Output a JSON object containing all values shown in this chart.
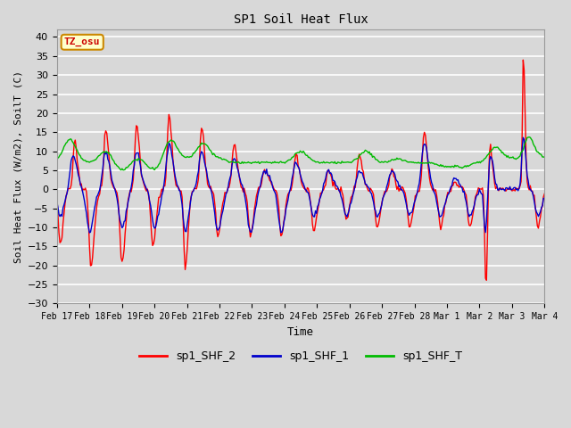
{
  "title": "SP1 Soil Heat Flux",
  "xlabel": "Time",
  "ylabel": "Soil Heat Flux (W/m2), SoilT (C)",
  "ylim": [
    -30,
    42
  ],
  "yticks": [
    -30,
    -25,
    -20,
    -15,
    -10,
    -5,
    0,
    5,
    10,
    15,
    20,
    25,
    30,
    35,
    40
  ],
  "bg_color": "#d8d8d8",
  "plot_bg_color": "#d8d8d8",
  "grid_color": "#ffffff",
  "line_colors": {
    "sp1_SHF_2": "#ff0000",
    "sp1_SHF_1": "#0000cc",
    "sp1_SHF_T": "#00bb00"
  },
  "annotation_text": "TZ_osu",
  "annotation_bg": "#ffffcc",
  "annotation_border": "#cc8800",
  "legend_labels": [
    "sp1_SHF_2",
    "sp1_SHF_1",
    "sp1_SHF_T"
  ],
  "xtick_labels": [
    "Feb 17",
    "Feb 18",
    "Feb 19",
    "Feb 20",
    "Feb 21",
    "Feb 22",
    "Feb 23",
    "Feb 24",
    "Feb 25",
    "Feb 26",
    "Feb 27",
    "Feb 28",
    "Mar 1",
    "Mar 2",
    "Mar 3",
    "Mar 4"
  ],
  "num_points": 480,
  "date_end": 15
}
